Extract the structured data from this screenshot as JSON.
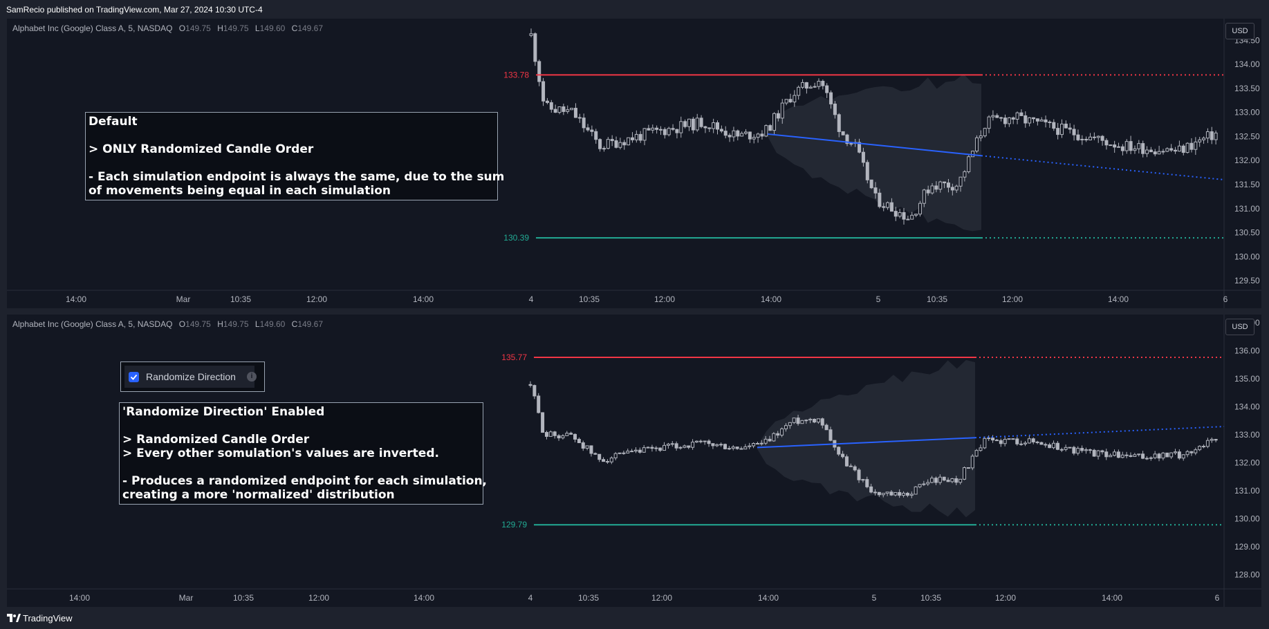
{
  "header": {
    "published_text": "SamRecio published on TradingView.com, Mar 27, 2024 10:30 UTC-4"
  },
  "footer": {
    "brand": "TradingView"
  },
  "colors": {
    "background": "#131722",
    "upper_level": "#f23645",
    "lower_level": "#22ab94",
    "mean_line": "#2962ff",
    "candle": "#b2b5be",
    "band_fill": "#262a35"
  },
  "panes": [
    {
      "legend": {
        "symbol": "Alphabet Inc (Google) Class A, 5, NASDAQ",
        "o_label": "O",
        "o": "149.75",
        "h_label": "H",
        "h": "149.75",
        "l_label": "L",
        "l": "149.60",
        "c_label": "C",
        "c": "149.67"
      },
      "currency_button": "USD",
      "price_axis": {
        "labels": [
          "134.50",
          "134.00",
          "133.50",
          "133.00",
          "132.50",
          "132.00",
          "131.50",
          "131.00",
          "130.50",
          "130.00",
          "129.50"
        ],
        "min": 129.3,
        "max": 134.95
      },
      "time_axis": {
        "labels": [
          "14:00",
          "Mar",
          "10:35",
          "12:00",
          "14:00",
          "4",
          "10:35",
          "12:00",
          "14:00",
          "5",
          "10:35",
          "12:00",
          "14:00",
          "6"
        ]
      },
      "levels": {
        "upper": "133.78",
        "lower": "130.39"
      },
      "annotation": {
        "title": "Default",
        "line1": "> ONLY Randomized Candle Order",
        "line2": "- Each simulation endpoint is always the same, due to the sum",
        "line3": "of movements being equal in each simulation"
      },
      "chart_data": {
        "type": "candlestick",
        "start_value": 132.55,
        "end_value_solid": 132.1,
        "end_value_dotted": 131.6,
        "upper_level": 133.78,
        "lower_level": 130.39,
        "candles_start": 134.6,
        "candles_end": 132.6
      }
    },
    {
      "legend": {
        "symbol": "Alphabet Inc (Google) Class A, 5, NASDAQ",
        "o_label": "O",
        "o": "149.75",
        "h_label": "H",
        "h": "149.75",
        "l_label": "L",
        "l": "149.60",
        "c_label": "C",
        "c": "149.67"
      },
      "currency_button": "USD",
      "price_axis": {
        "labels": [
          "137.00",
          "136.00",
          "135.00",
          "134.00",
          "133.00",
          "132.00",
          "131.00",
          "130.00",
          "129.00",
          "128.00"
        ],
        "min": 127.5,
        "max": 137.3
      },
      "time_axis": {
        "labels": [
          "14:00",
          "Mar",
          "10:35",
          "12:00",
          "14:00",
          "4",
          "10:35",
          "12:00",
          "14:00",
          "5",
          "10:35",
          "12:00",
          "14:00",
          "6"
        ]
      },
      "levels": {
        "upper": "135.77",
        "lower": "129.79"
      },
      "checkbox": {
        "label": "Randomize Direction",
        "checked": true
      },
      "annotation": {
        "title": "'Randomize Direction' Enabled",
        "line1": "> Randomized Candle Order",
        "line2": "> Every other somulation's values are inverted.",
        "line3": "- Produces a randomized endpoint for each simulation,",
        "line4": "creating a more 'normalized' distribution"
      },
      "chart_data": {
        "type": "candlestick",
        "start_value": 132.55,
        "end_value_solid": 132.9,
        "end_value_dotted": 133.3,
        "upper_level": 135.77,
        "lower_level": 129.79,
        "candles_start": 134.8,
        "candles_end": 133.0
      }
    }
  ]
}
